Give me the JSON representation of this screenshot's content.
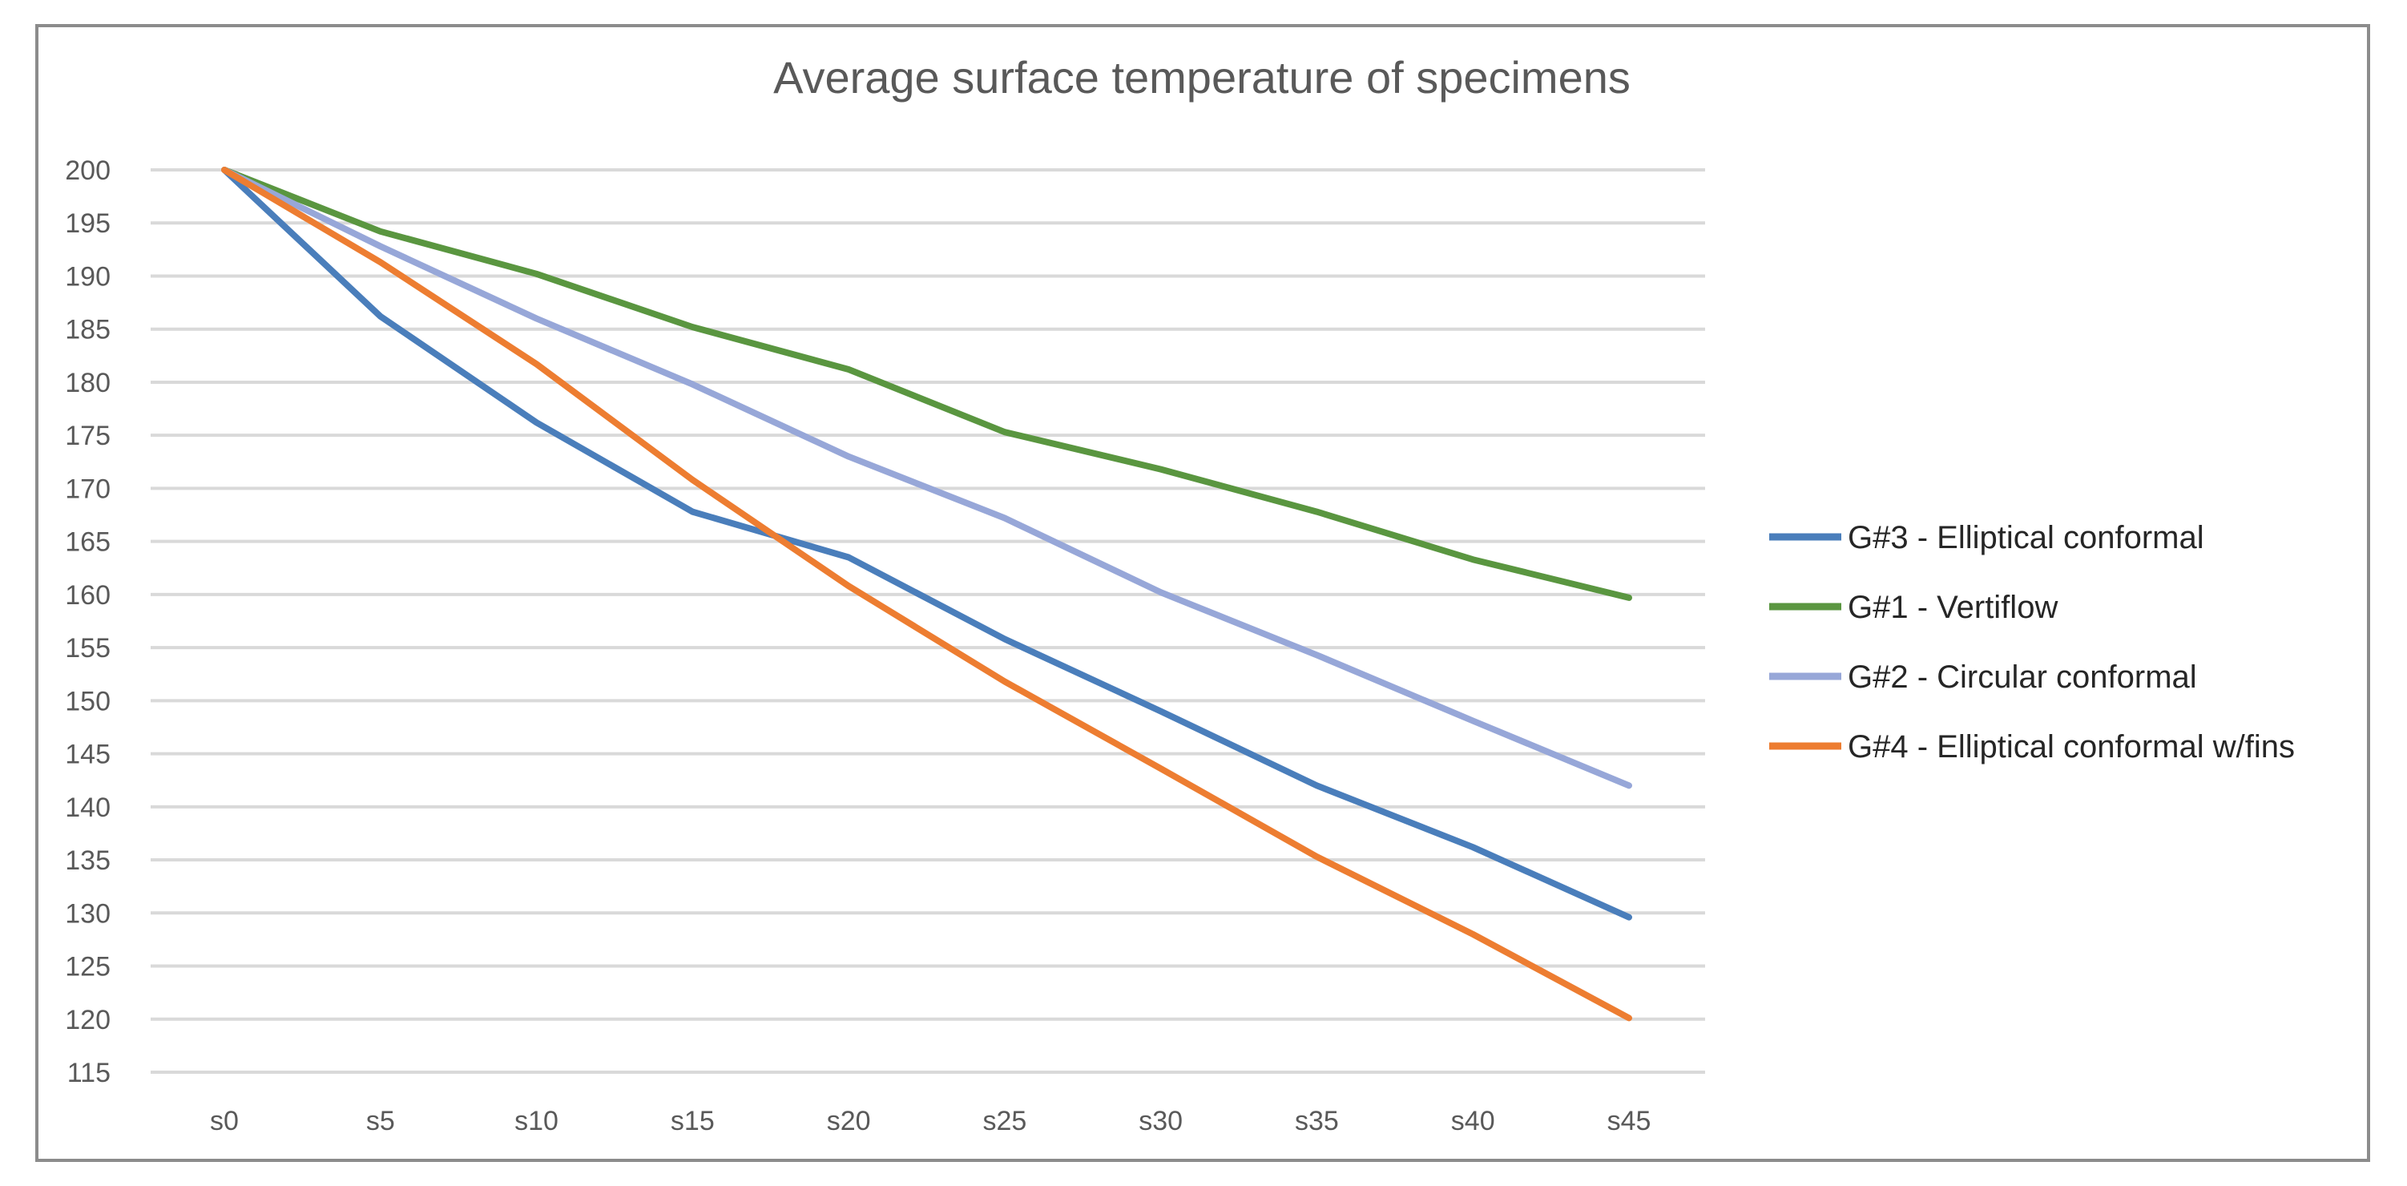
{
  "chart_data": {
    "type": "line",
    "title": "Average surface temperature of specimens",
    "xlabel": "",
    "ylabel": "",
    "categories": [
      "s0",
      "s5",
      "s10",
      "s15",
      "s20",
      "s25",
      "s30",
      "s35",
      "s40",
      "s45"
    ],
    "ylim": [
      115,
      200
    ],
    "ytick_step": 5,
    "grid": true,
    "legend_position": "right",
    "series": [
      {
        "name": "G#3 - Elliptical conformal",
        "color": "#4a7ebb",
        "values": [
          200,
          186.2,
          176.2,
          167.8,
          163.5,
          155.8,
          149.0,
          142.0,
          136.2,
          129.6
        ]
      },
      {
        "name": "G#1 - Vertiflow",
        "color": "#5a9640",
        "values": [
          200,
          194.2,
          190.2,
          185.2,
          181.2,
          175.3,
          171.8,
          167.8,
          163.3,
          159.7
        ]
      },
      {
        "name": "G#2 - Circular conformal",
        "color": "#97a7d8",
        "values": [
          200,
          192.8,
          186.0,
          179.8,
          173.0,
          167.2,
          160.2,
          154.3,
          148.1,
          142.0
        ]
      },
      {
        "name": "G#4 - Elliptical conformal w/fins",
        "color": "#ed7d31",
        "values": [
          200,
          191.3,
          181.7,
          170.8,
          160.8,
          151.8,
          143.6,
          135.3,
          128.0,
          120.1
        ]
      }
    ]
  }
}
